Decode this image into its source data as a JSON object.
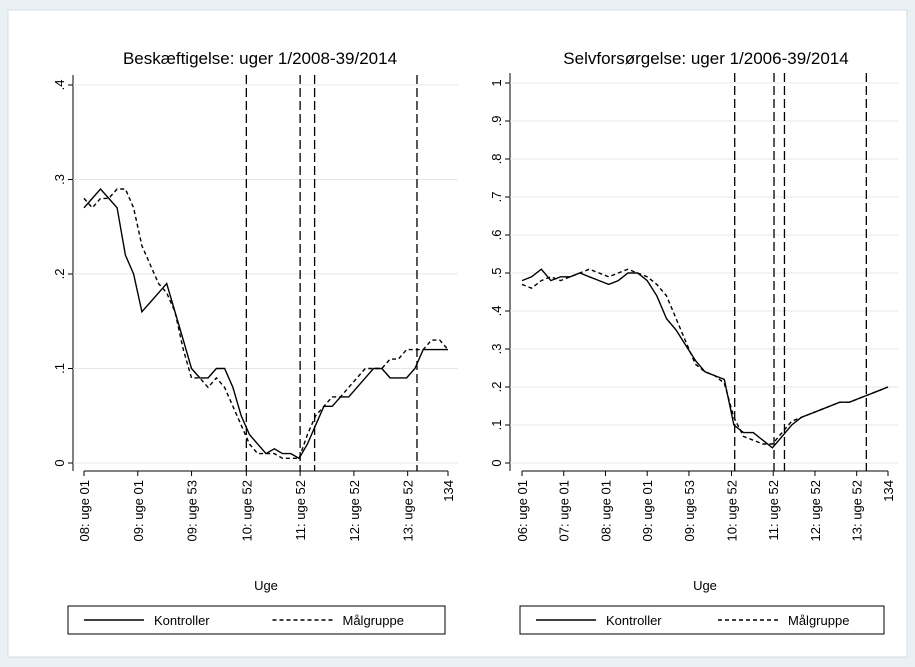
{
  "chart_data": [
    {
      "type": "line",
      "title": "Beskæftigelse: uger 1/2008-39/2014",
      "x_label": "Uge",
      "xlim": [
        1,
        353
      ],
      "ylim": [
        0,
        0.4
      ],
      "xticks": [
        {
          "value": 1,
          "label": "08: uge 01"
        },
        {
          "value": 53,
          "label": "09: uge 01"
        },
        {
          "value": 105,
          "label": "09: uge 53"
        },
        {
          "value": 158,
          "label": "10: uge 52"
        },
        {
          "value": 210,
          "label": "11: uge 52"
        },
        {
          "value": 262,
          "label": "12: uge 52"
        },
        {
          "value": 314,
          "label": "13: uge 52"
        },
        {
          "value": 353,
          "label": "134"
        }
      ],
      "yticks": [
        0,
        {
          "value": 0.1,
          "label": ".1"
        },
        {
          "value": 0.2,
          "label": ".2"
        },
        {
          "value": 0.3,
          "label": ".3"
        },
        {
          "value": 0.4,
          "label": ".4"
        }
      ],
      "grid": true,
      "xlines": [
        158,
        210,
        224,
        323
      ],
      "x": [
        1,
        9,
        17,
        25,
        33,
        41,
        49,
        57,
        65,
        73,
        81,
        89,
        97,
        105,
        113,
        121,
        129,
        137,
        145,
        153,
        161,
        169,
        177,
        185,
        193,
        201,
        209,
        217,
        225,
        233,
        241,
        249,
        257,
        265,
        273,
        281,
        289,
        297,
        305,
        313,
        321,
        329,
        337,
        345,
        353
      ],
      "series": [
        {
          "name": "Kontroller",
          "color": "#000000",
          "dash": "solid",
          "values": [
            0.27,
            0.28,
            0.29,
            0.28,
            0.27,
            0.22,
            0.2,
            0.16,
            0.17,
            0.18,
            0.19,
            0.16,
            0.13,
            0.1,
            0.09,
            0.09,
            0.1,
            0.1,
            0.08,
            0.05,
            0.03,
            0.02,
            0.01,
            0.015,
            0.01,
            0.01,
            0.005,
            0.02,
            0.04,
            0.06,
            0.06,
            0.07,
            0.07,
            0.08,
            0.09,
            0.1,
            0.1,
            0.09,
            0.09,
            0.09,
            0.1,
            0.12,
            0.12,
            0.12,
            0.12
          ]
        },
        {
          "name": "Målgruppe",
          "color": "#000000",
          "dash": "dashed",
          "values": [
            0.28,
            0.27,
            0.28,
            0.28,
            0.29,
            0.29,
            0.27,
            0.23,
            0.21,
            0.19,
            0.18,
            0.16,
            0.12,
            0.09,
            0.09,
            0.08,
            0.09,
            0.08,
            0.06,
            0.04,
            0.02,
            0.01,
            0.01,
            0.01,
            0.005,
            0.005,
            0.005,
            0.03,
            0.05,
            0.06,
            0.07,
            0.07,
            0.08,
            0.09,
            0.1,
            0.1,
            0.1,
            0.11,
            0.11,
            0.12,
            0.12,
            0.12,
            0.13,
            0.13,
            0.12
          ]
        }
      ]
    },
    {
      "type": "line",
      "title": "Selvforsørgelse: uger 1/2006-39/2014",
      "x_label": "Uge",
      "xlim": [
        1,
        457
      ],
      "ylim": [
        0,
        1
      ],
      "xticks": [
        {
          "value": 1,
          "label": "06: uge 01"
        },
        {
          "value": 53,
          "label": "07: uge 01"
        },
        {
          "value": 105,
          "label": "08: uge 01"
        },
        {
          "value": 157,
          "label": "09: uge 01"
        },
        {
          "value": 209,
          "label": "09: uge 53"
        },
        {
          "value": 262,
          "label": "10: uge 52"
        },
        {
          "value": 314,
          "label": "11: uge 52"
        },
        {
          "value": 366,
          "label": "12: uge 52"
        },
        {
          "value": 418,
          "label": "13: uge 52"
        },
        {
          "value": 457,
          "label": "134"
        }
      ],
      "yticks": [
        0,
        {
          "value": 0.1,
          "label": ".1"
        },
        {
          "value": 0.2,
          "label": ".2"
        },
        {
          "value": 0.3,
          "label": ".3"
        },
        {
          "value": 0.4,
          "label": ".4"
        },
        {
          "value": 0.5,
          "label": ".5"
        },
        {
          "value": 0.6,
          "label": ".6"
        },
        {
          "value": 0.7,
          "label": ".7"
        },
        {
          "value": 0.8,
          "label": ".8"
        },
        {
          "value": 0.9,
          "label": ".9"
        },
        1
      ],
      "grid": true,
      "xlines": [
        266,
        315,
        328,
        430
      ],
      "x": [
        1,
        13,
        25,
        37,
        49,
        61,
        73,
        85,
        97,
        109,
        121,
        133,
        145,
        157,
        169,
        181,
        193,
        205,
        217,
        229,
        241,
        253,
        265,
        277,
        289,
        301,
        313,
        325,
        337,
        349,
        361,
        373,
        385,
        397,
        409,
        421,
        433,
        445,
        457
      ],
      "series": [
        {
          "name": "Kontroller",
          "color": "#000000",
          "dash": "solid",
          "values": [
            0.48,
            0.49,
            0.51,
            0.48,
            0.49,
            0.49,
            0.5,
            0.49,
            0.48,
            0.47,
            0.48,
            0.5,
            0.5,
            0.48,
            0.44,
            0.38,
            0.35,
            0.31,
            0.27,
            0.24,
            0.23,
            0.22,
            0.1,
            0.08,
            0.08,
            0.06,
            0.04,
            0.07,
            0.1,
            0.12,
            0.13,
            0.14,
            0.15,
            0.16,
            0.16,
            0.17,
            0.18,
            0.19,
            0.2
          ]
        },
        {
          "name": "Målgruppe",
          "color": "#000000",
          "dash": "dashed",
          "values": [
            0.47,
            0.46,
            0.48,
            0.49,
            0.48,
            0.49,
            0.5,
            0.51,
            0.5,
            0.49,
            0.5,
            0.51,
            0.5,
            0.49,
            0.47,
            0.44,
            0.38,
            0.32,
            0.26,
            0.24,
            0.23,
            0.21,
            0.12,
            0.07,
            0.06,
            0.05,
            0.05,
            0.08,
            0.11,
            0.12,
            0.13,
            0.14,
            0.15,
            0.16,
            0.16,
            0.17,
            0.18,
            0.19,
            0.2
          ]
        }
      ]
    }
  ]
}
